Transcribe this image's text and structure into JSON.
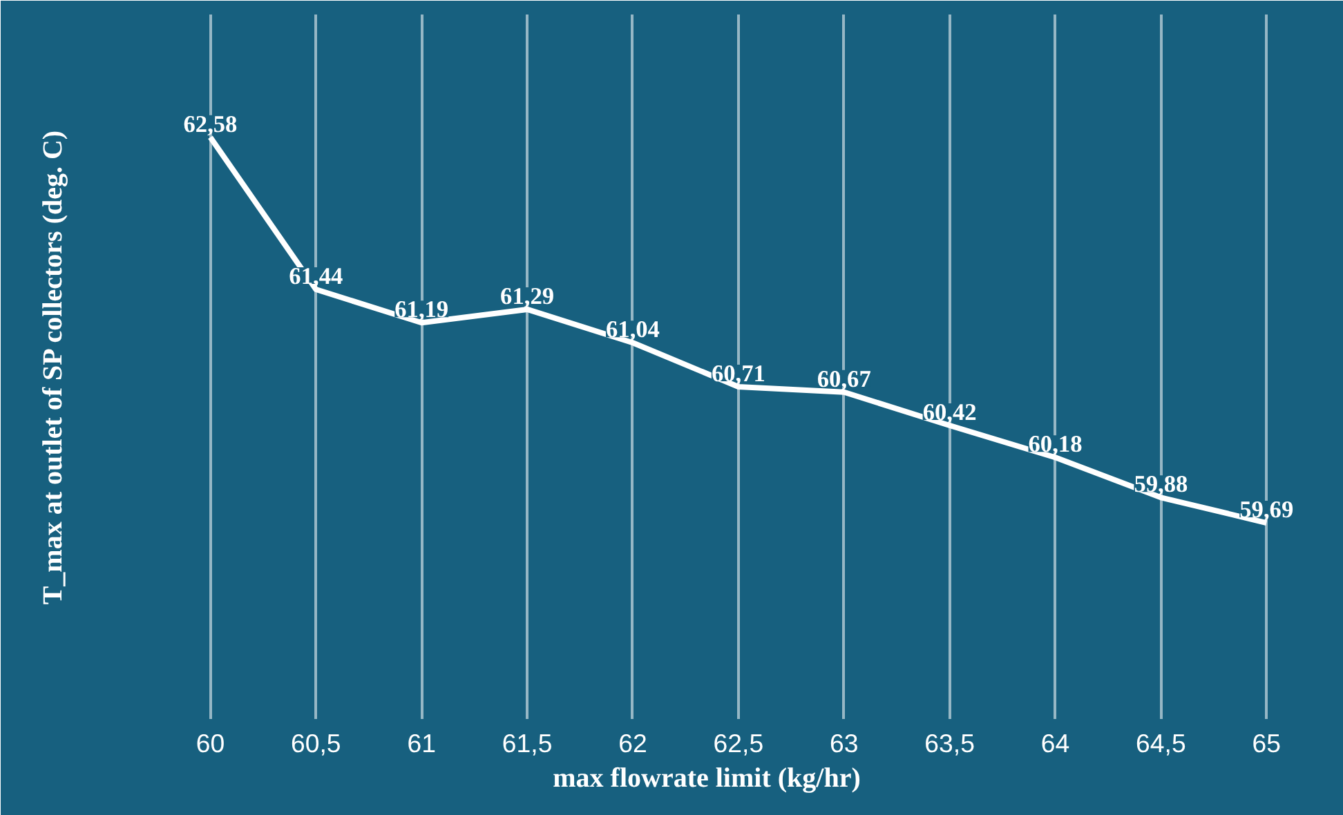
{
  "chart_data": {
    "type": "line",
    "xlabel": "max flowrate limit (kg/hr)",
    "ylabel": "T_max at outlet of SP collectors (deg. C)",
    "x": [
      60,
      60.5,
      61,
      61.5,
      62,
      62.5,
      63,
      63.5,
      64,
      64.5,
      65
    ],
    "series": [
      {
        "color": "#ffffff",
        "values": [
          62.58,
          61.44,
          61.19,
          61.29,
          61.04,
          60.71,
          60.67,
          60.42,
          60.18,
          59.88,
          59.69
        ],
        "value_labels": [
          "62,58",
          "61,44",
          "61,19",
          "61,29",
          "61,04",
          "60,71",
          "60,67",
          "60,42",
          "60,18",
          "59,88",
          "59,69"
        ]
      }
    ],
    "xlim": [
      59.4,
      65.3
    ],
    "ylim": [
      58.22,
      63.5
    ],
    "xticks": [
      60,
      {
        "value": 60.5,
        "label": "60,5"
      },
      61,
      {
        "value": 61.5,
        "label": "61,5"
      },
      62,
      {
        "value": 62.5,
        "label": "62,5"
      },
      63,
      {
        "value": 63.5,
        "label": "63,5"
      },
      64,
      {
        "value": 64.5,
        "label": "64,5"
      },
      65
    ],
    "tick_labels": "x",
    "grid": "x",
    "line_style": "solid"
  }
}
